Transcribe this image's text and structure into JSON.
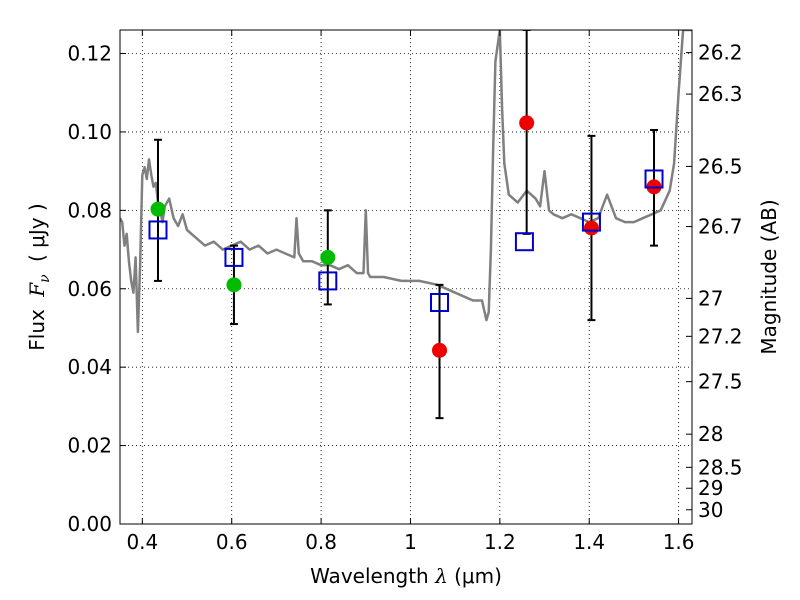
{
  "chart_data": {
    "type": "scatter",
    "xlabel_text": "Wavelength",
    "xlabel_symbol": "λ",
    "xlabel_unit": "(μm)",
    "ylabel_text": "Flux",
    "ylabel_symbol": "F",
    "ylabel_subscript": "ν",
    "ylabel_unit": "( μJy )",
    "y2label": "Magnitude (AB)",
    "xlim": [
      0.35,
      1.63
    ],
    "ylim": [
      0.0,
      0.126
    ],
    "grid": true,
    "xticks": [
      {
        "value": 0.4,
        "label": "0.4"
      },
      {
        "value": 0.6,
        "label": "0.6"
      },
      {
        "value": 0.8,
        "label": "0.8"
      },
      {
        "value": 1.0,
        "label": "1"
      },
      {
        "value": 1.2,
        "label": "1.2"
      },
      {
        "value": 1.4,
        "label": "1.4"
      },
      {
        "value": 1.6,
        "label": "1.6"
      }
    ],
    "yticks": [
      {
        "value": 0.0,
        "label": "0.00"
      },
      {
        "value": 0.02,
        "label": "0.02"
      },
      {
        "value": 0.04,
        "label": "0.04"
      },
      {
        "value": 0.06,
        "label": "0.06"
      },
      {
        "value": 0.08,
        "label": "0.08"
      },
      {
        "value": 0.1,
        "label": "0.10"
      },
      {
        "value": 0.12,
        "label": "0.12"
      }
    ],
    "y2ticks": [
      {
        "value": 26.2,
        "label": "26.2"
      },
      {
        "value": 26.3,
        "label": "26.3"
      },
      {
        "value": 26.5,
        "label": "26.5"
      },
      {
        "value": 26.7,
        "label": "26.7"
      },
      {
        "value": 27.0,
        "label": "27"
      },
      {
        "value": 27.2,
        "label": "27.2"
      },
      {
        "value": 27.5,
        "label": "27.5"
      },
      {
        "value": 28.0,
        "label": "28"
      },
      {
        "value": 28.5,
        "label": "28.5"
      },
      {
        "value": 29.0,
        "label": "29"
      },
      {
        "value": 30.0,
        "label": "30"
      }
    ],
    "series": [
      {
        "kind": "spectrum",
        "color": "#808080",
        "x": [
          0.35,
          0.355,
          0.36,
          0.365,
          0.37,
          0.375,
          0.38,
          0.385,
          0.39,
          0.395,
          0.4,
          0.405,
          0.41,
          0.415,
          0.42,
          0.425,
          0.43,
          0.435,
          0.44,
          0.445,
          0.45,
          0.46,
          0.47,
          0.48,
          0.49,
          0.5,
          0.52,
          0.54,
          0.56,
          0.58,
          0.6,
          0.62,
          0.64,
          0.66,
          0.68,
          0.7,
          0.72,
          0.74,
          0.745,
          0.75,
          0.755,
          0.76,
          0.78,
          0.8,
          0.82,
          0.84,
          0.86,
          0.88,
          0.895,
          0.9,
          0.905,
          0.91,
          0.94,
          0.98,
          1.02,
          1.06,
          1.1,
          1.14,
          1.16,
          1.17,
          1.175,
          1.18,
          1.185,
          1.19,
          1.2,
          1.205,
          1.21,
          1.22,
          1.24,
          1.26,
          1.28,
          1.29,
          1.3,
          1.31,
          1.32,
          1.34,
          1.36,
          1.38,
          1.4,
          1.42,
          1.44,
          1.46,
          1.48,
          1.5,
          1.52,
          1.54,
          1.56,
          1.58,
          1.59,
          1.6,
          1.61,
          1.62,
          1.63
        ],
        "y": [
          0.078,
          0.077,
          0.071,
          0.074,
          0.067,
          0.062,
          0.059,
          0.068,
          0.049,
          0.066,
          0.089,
          0.091,
          0.088,
          0.093,
          0.089,
          0.086,
          0.087,
          0.082,
          0.08,
          0.077,
          0.081,
          0.083,
          0.078,
          0.076,
          0.079,
          0.075,
          0.073,
          0.071,
          0.072,
          0.07,
          0.071,
          0.072,
          0.07,
          0.071,
          0.069,
          0.07,
          0.069,
          0.068,
          0.078,
          0.069,
          0.068,
          0.067,
          0.067,
          0.066,
          0.066,
          0.065,
          0.066,
          0.064,
          0.064,
          0.08,
          0.064,
          0.063,
          0.063,
          0.062,
          0.062,
          0.061,
          0.059,
          0.057,
          0.057,
          0.052,
          0.054,
          0.07,
          0.095,
          0.118,
          0.126,
          0.106,
          0.092,
          0.084,
          0.082,
          0.085,
          0.083,
          0.081,
          0.09,
          0.08,
          0.079,
          0.078,
          0.079,
          0.078,
          0.077,
          0.078,
          0.084,
          0.078,
          0.077,
          0.077,
          0.078,
          0.079,
          0.08,
          0.085,
          0.092,
          0.11,
          0.126,
          0.126,
          0.126
        ]
      },
      {
        "kind": "model_points",
        "marker": "open-square",
        "color": "#0000cc",
        "x": [
          0.435,
          0.605,
          0.815,
          1.065,
          1.255,
          1.405,
          1.545
        ],
        "y": [
          0.075,
          0.068,
          0.062,
          0.0565,
          0.072,
          0.077,
          0.088
        ]
      },
      {
        "kind": "observed_points",
        "marker": "filled-circle",
        "color": "#00bb00",
        "x": [
          0.435,
          0.605,
          0.815
        ],
        "y": [
          0.0803,
          0.061,
          0.068
        ]
      },
      {
        "kind": "observed_points",
        "marker": "filled-circle",
        "color": "#ee0000",
        "x": [
          1.065,
          1.26,
          1.405,
          1.545
        ],
        "y": [
          0.0443,
          0.1023,
          0.0755,
          0.086
        ]
      },
      {
        "kind": "error_bars",
        "color": "#000000",
        "x": [
          0.435,
          0.605,
          0.815,
          1.065,
          1.26,
          1.405,
          1.545
        ],
        "ylow": [
          0.062,
          0.051,
          0.056,
          0.027,
          0.074,
          0.052,
          0.071
        ],
        "yhigh": [
          0.098,
          0.071,
          0.08,
          0.061,
          0.126,
          0.099,
          0.1005
        ]
      }
    ]
  }
}
